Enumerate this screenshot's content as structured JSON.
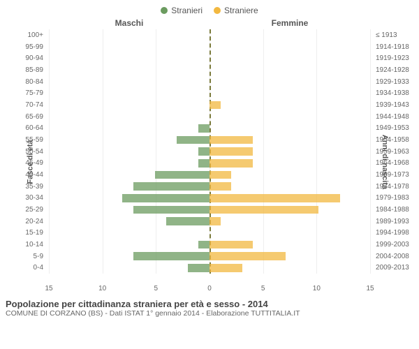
{
  "legend": {
    "male": {
      "label": "Stranieri",
      "color": "#6b9b5f"
    },
    "female": {
      "label": "Straniere",
      "color": "#f2b840"
    }
  },
  "column_titles": {
    "left": "Maschi",
    "right": "Femmine"
  },
  "axes": {
    "y_left_title": "Fasce di età",
    "y_right_title": "Anni di nascita",
    "x_max": 15,
    "x_ticks": [
      15,
      10,
      5,
      0,
      5,
      10,
      15
    ]
  },
  "styling": {
    "background": "#ffffff",
    "grid_color": "#eeeeee",
    "center_line_color": "#7a7a3a",
    "tick_font_size": 10,
    "label_font_size": 11,
    "bar_opacity": 0.75
  },
  "rows": [
    {
      "age": "100+",
      "birth": "≤ 1913",
      "m": 0,
      "f": 0
    },
    {
      "age": "95-99",
      "birth": "1914-1918",
      "m": 0,
      "f": 0
    },
    {
      "age": "90-94",
      "birth": "1919-1923",
      "m": 0,
      "f": 0
    },
    {
      "age": "85-89",
      "birth": "1924-1928",
      "m": 0,
      "f": 0
    },
    {
      "age": "80-84",
      "birth": "1929-1933",
      "m": 0,
      "f": 0
    },
    {
      "age": "75-79",
      "birth": "1934-1938",
      "m": 0,
      "f": 0
    },
    {
      "age": "70-74",
      "birth": "1939-1943",
      "m": 0,
      "f": 1
    },
    {
      "age": "65-69",
      "birth": "1944-1948",
      "m": 0,
      "f": 0
    },
    {
      "age": "60-64",
      "birth": "1949-1953",
      "m": 1,
      "f": 0
    },
    {
      "age": "55-59",
      "birth": "1954-1958",
      "m": 3,
      "f": 4
    },
    {
      "age": "50-54",
      "birth": "1959-1963",
      "m": 1,
      "f": 4
    },
    {
      "age": "45-49",
      "birth": "1964-1968",
      "m": 1,
      "f": 4
    },
    {
      "age": "40-44",
      "birth": "1969-1973",
      "m": 5,
      "f": 2
    },
    {
      "age": "35-39",
      "birth": "1974-1978",
      "m": 7,
      "f": 2
    },
    {
      "age": "30-34",
      "birth": "1979-1983",
      "m": 8,
      "f": 12
    },
    {
      "age": "25-29",
      "birth": "1984-1988",
      "m": 7,
      "f": 10
    },
    {
      "age": "20-24",
      "birth": "1989-1993",
      "m": 4,
      "f": 1
    },
    {
      "age": "15-19",
      "birth": "1994-1998",
      "m": 0,
      "f": 0
    },
    {
      "age": "10-14",
      "birth": "1999-2003",
      "m": 1,
      "f": 4
    },
    {
      "age": "5-9",
      "birth": "2004-2008",
      "m": 7,
      "f": 7
    },
    {
      "age": "0-4",
      "birth": "2009-2013",
      "m": 2,
      "f": 3
    }
  ],
  "footer": {
    "title": "Popolazione per cittadinanza straniera per età e sesso - 2014",
    "subtitle": "COMUNE DI CORZANO (BS) - Dati ISTAT 1° gennaio 2014 - Elaborazione TUTTITALIA.IT"
  }
}
